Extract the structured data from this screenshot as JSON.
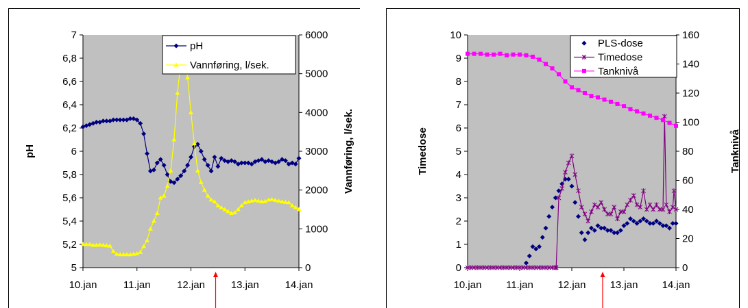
{
  "chart_data": [
    {
      "type": "line",
      "xlabel": "",
      "x_ticks": [
        "10.jan",
        "11.jan",
        "12.jan",
        "13.jan",
        "14.jan"
      ],
      "ylabel": "pH",
      "y2label": "Vannføring, l/sek.",
      "ylim": [
        5,
        7
      ],
      "y_ticks": [
        "5",
        "5,2",
        "5,4",
        "5,6",
        "5,8",
        "6",
        "6,2",
        "6,4",
        "6,6",
        "6,8",
        "7"
      ],
      "y2lim": [
        0,
        6000
      ],
      "y2_ticks": [
        "0",
        "1000",
        "2000",
        "3000",
        "4000",
        "5000",
        "6000"
      ],
      "grid": false,
      "background": "#c0c0c0",
      "legend_position": "top-right",
      "marker_position": "12.jan 12:00",
      "marker_color": "#ff0000",
      "series": [
        {
          "name": "pH",
          "axis": "left",
          "color": "#000080",
          "marker": "diamond",
          "x": [
            0.0,
            0.0625,
            0.125,
            0.1875,
            0.25,
            0.3125,
            0.375,
            0.4375,
            0.5,
            0.5625,
            0.625,
            0.6875,
            0.75,
            0.8125,
            0.875,
            0.9375,
            1.0,
            1.0625,
            1.125,
            1.1875,
            1.25,
            1.3125,
            1.375,
            1.4375,
            1.5,
            1.5625,
            1.625,
            1.6875,
            1.75,
            1.8125,
            1.875,
            1.9375,
            2.0,
            2.0625,
            2.125,
            2.1875,
            2.25,
            2.3125,
            2.375,
            2.4375,
            2.5,
            2.5625,
            2.625,
            2.6875,
            2.75,
            2.8125,
            2.875,
            2.9375,
            3.0,
            3.0625,
            3.125,
            3.1875,
            3.25,
            3.3125,
            3.375,
            3.4375,
            3.5,
            3.5625,
            3.625,
            3.6875,
            3.75,
            3.8125,
            3.875,
            3.9375,
            4.0
          ],
          "y": [
            6.21,
            6.22,
            6.23,
            6.24,
            6.25,
            6.25,
            6.26,
            6.26,
            6.26,
            6.27,
            6.27,
            6.27,
            6.27,
            6.27,
            6.28,
            6.28,
            6.27,
            6.24,
            6.15,
            5.98,
            5.83,
            5.84,
            5.9,
            5.93,
            5.88,
            5.8,
            5.74,
            5.73,
            5.76,
            5.79,
            5.83,
            5.88,
            5.95,
            6.04,
            6.06,
            6.0,
            5.93,
            5.88,
            5.83,
            5.95,
            5.87,
            5.94,
            5.92,
            5.91,
            5.92,
            5.91,
            5.89,
            5.9,
            5.9,
            5.9,
            5.89,
            5.91,
            5.92,
            5.93,
            5.91,
            5.92,
            5.91,
            5.9,
            5.91,
            5.93,
            5.92,
            5.89,
            5.9,
            5.89,
            5.94
          ]
        },
        {
          "name": "Vannføring, l/sek.",
          "axis": "right",
          "color": "#ffff00",
          "marker": "triangle",
          "x": [
            0.0,
            0.0625,
            0.125,
            0.1875,
            0.25,
            0.3125,
            0.375,
            0.4375,
            0.5,
            0.5625,
            0.625,
            0.6875,
            0.75,
            0.8125,
            0.875,
            0.9375,
            1.0,
            1.0625,
            1.125,
            1.1875,
            1.25,
            1.3125,
            1.375,
            1.4375,
            1.5,
            1.5625,
            1.625,
            1.6875,
            1.75,
            1.8125,
            1.875,
            1.9375,
            2.0,
            2.0625,
            2.125,
            2.1875,
            2.25,
            2.3125,
            2.375,
            2.4375,
            2.5,
            2.5625,
            2.625,
            2.6875,
            2.75,
            2.8125,
            2.875,
            2.9375,
            3.0,
            3.0625,
            3.125,
            3.1875,
            3.25,
            3.3125,
            3.375,
            3.4375,
            3.5,
            3.5625,
            3.625,
            3.6875,
            3.75,
            3.8125,
            3.875,
            3.9375,
            4.0
          ],
          "y": [
            600,
            600,
            600,
            580,
            580,
            590,
            580,
            570,
            560,
            420,
            350,
            340,
            340,
            340,
            340,
            350,
            360,
            400,
            550,
            700,
            1000,
            1200,
            1400,
            1800,
            1850,
            2100,
            2500,
            3300,
            4500,
            5300,
            5600,
            4900,
            4000,
            3200,
            2500,
            2200,
            2000,
            1850,
            1750,
            1700,
            1600,
            1550,
            1500,
            1450,
            1400,
            1420,
            1500,
            1600,
            1680,
            1700,
            1720,
            1740,
            1720,
            1700,
            1710,
            1750,
            1760,
            1740,
            1720,
            1700,
            1690,
            1680,
            1600,
            1550,
            1500
          ]
        }
      ]
    },
    {
      "type": "line",
      "xlabel": "",
      "x_ticks": [
        "10.jan",
        "11.jan",
        "12.jan",
        "13.jan",
        "14.jan"
      ],
      "ylabel": "Timedose",
      "y2label": "Tanknivå",
      "ylim": [
        0,
        10
      ],
      "y_ticks": [
        "0",
        "1",
        "2",
        "3",
        "4",
        "5",
        "6",
        "7",
        "8",
        "9",
        "10"
      ],
      "y2lim": [
        0,
        160
      ],
      "y2_ticks": [
        "0",
        "20",
        "40",
        "60",
        "80",
        "100",
        "120",
        "140",
        "160"
      ],
      "grid": false,
      "background": "#c0c0c0",
      "legend_position": "top-right",
      "marker_position": "12.jan 14:30",
      "marker_color": "#ff0000",
      "series": [
        {
          "name": "PLS-dose",
          "axis": "left",
          "color": "#000080",
          "marker": "diamond",
          "line": false,
          "x": [
            1.125,
            1.1875,
            1.25,
            1.3125,
            1.375,
            1.4375,
            1.5,
            1.5625,
            1.625,
            1.6875,
            1.75,
            1.8125,
            1.875,
            1.9375,
            2.0,
            2.0625,
            2.125,
            2.1875,
            2.25,
            2.3125,
            2.375,
            2.4375,
            2.5,
            2.5625,
            2.625,
            2.6875,
            2.75,
            2.8125,
            2.875,
            2.9375,
            3.0,
            3.0625,
            3.125,
            3.1875,
            3.25,
            3.3125,
            3.375,
            3.4375,
            3.5,
            3.5625,
            3.625,
            3.6875,
            3.75,
            3.8125,
            3.875,
            3.9375,
            4.0
          ],
          "y": [
            0.2,
            0.5,
            0.9,
            0.8,
            0.9,
            1.3,
            1.7,
            2.2,
            2.6,
            3.0,
            3.3,
            3.6,
            3.8,
            3.8,
            3.5,
            2.8,
            2.2,
            1.5,
            1.2,
            1.5,
            1.7,
            1.6,
            1.8,
            1.7,
            1.7,
            1.6,
            1.6,
            1.5,
            1.5,
            1.6,
            1.8,
            1.9,
            2.1,
            2.0,
            1.9,
            2.0,
            2.1,
            2.0,
            1.9,
            1.9,
            2.0,
            1.9,
            1.8,
            1.8,
            1.7,
            1.9,
            1.9
          ]
        },
        {
          "name": "Timedose",
          "axis": "left",
          "color": "#800080",
          "marker": "star",
          "x": [
            0.0,
            0.0625,
            0.125,
            0.1875,
            0.25,
            0.3125,
            0.375,
            0.4375,
            0.5,
            0.5625,
            0.625,
            0.6875,
            0.75,
            0.8125,
            0.875,
            0.9375,
            1.0,
            1.0625,
            1.125,
            1.1875,
            1.25,
            1.3125,
            1.375,
            1.4375,
            1.5,
            1.5625,
            1.625,
            1.6875,
            1.7,
            1.75,
            1.8125,
            1.875,
            1.9375,
            2.0,
            2.0625,
            2.125,
            2.1875,
            2.25,
            2.3125,
            2.375,
            2.4375,
            2.5,
            2.5625,
            2.625,
            2.6875,
            2.75,
            2.8125,
            2.875,
            2.9375,
            3.0,
            3.0625,
            3.125,
            3.1875,
            3.25,
            3.3125,
            3.375,
            3.4375,
            3.5,
            3.5625,
            3.625,
            3.6875,
            3.75,
            3.78,
            3.8125,
            3.875,
            3.9375,
            3.96,
            4.0
          ],
          "y": [
            0,
            0,
            0,
            0,
            0,
            0,
            0,
            0,
            0,
            0,
            0,
            0,
            0,
            0,
            0,
            0,
            0,
            0,
            0,
            0,
            0,
            0,
            0,
            0,
            0,
            0,
            0,
            0,
            0,
            3.0,
            3.4,
            4.1,
            4.5,
            4.8,
            4.0,
            3.3,
            2.6,
            2.3,
            2.0,
            2.4,
            2.7,
            2.6,
            2.8,
            2.5,
            2.3,
            2.3,
            2.6,
            2.1,
            2.4,
            2.4,
            2.7,
            2.9,
            3.1,
            2.7,
            2.6,
            3.3,
            2.5,
            2.7,
            2.5,
            2.7,
            2.5,
            2.5,
            6.5,
            2.7,
            2.4,
            2.6,
            3.3,
            2.5
          ]
        },
        {
          "name": "Tanknivå",
          "axis": "right",
          "color": "#ff00ff",
          "marker": "square",
          "x": [
            0.0,
            0.125,
            0.25,
            0.375,
            0.5,
            0.625,
            0.75,
            0.875,
            1.0,
            1.125,
            1.25,
            1.375,
            1.5,
            1.625,
            1.75,
            1.875,
            2.0,
            2.125,
            2.25,
            2.375,
            2.5,
            2.625,
            2.75,
            2.875,
            3.0,
            3.125,
            3.25,
            3.375,
            3.5,
            3.625,
            3.75,
            3.875,
            4.0
          ],
          "y": [
            147,
            147,
            147,
            146.5,
            146.5,
            147,
            146,
            146.5,
            146.5,
            146,
            145,
            143,
            140,
            137,
            133,
            128,
            124,
            122,
            120,
            118,
            117,
            115.5,
            114,
            112.5,
            111,
            109,
            107.5,
            106,
            104.5,
            103,
            101.5,
            99.5,
            97.5
          ]
        }
      ]
    }
  ]
}
